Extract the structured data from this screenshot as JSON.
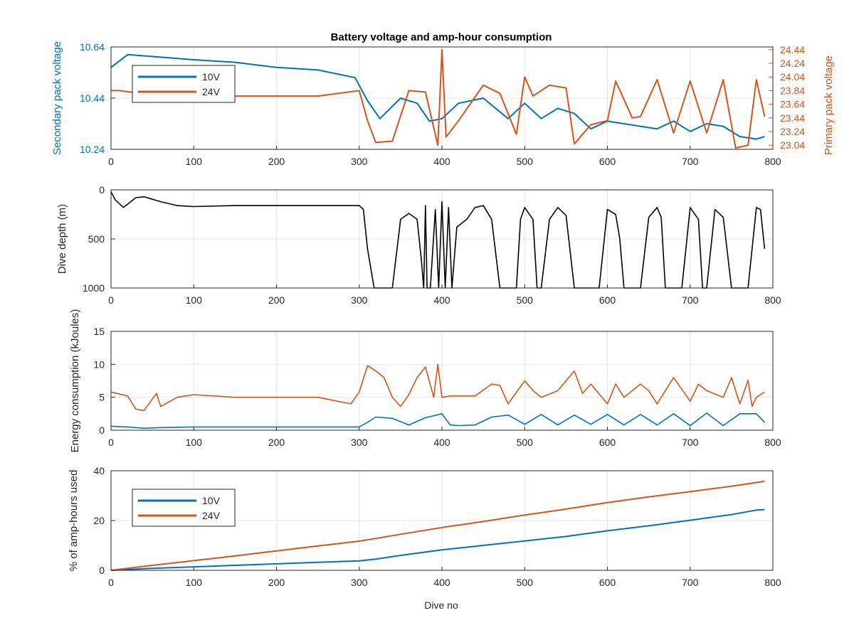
{
  "figure": {
    "title": "Battery voltage and amp-hour consumption",
    "xlabel": "Dive no"
  },
  "colors": {
    "series_10v": "#0072BD",
    "series_24v": "#D95319",
    "depth": "#000000",
    "axis": "#262626",
    "grid": "#e6e6e6",
    "background": "#ffffff"
  },
  "chart_data": [
    {
      "type": "line",
      "title": "Battery voltage and amp-hour consumption",
      "x_ticks": [
        0,
        100,
        200,
        300,
        400,
        500,
        600,
        700,
        800
      ],
      "xlim": [
        0,
        800
      ],
      "ylabel_left": "Secondary pack voltage",
      "ylabel_right": "Primary pack voltage",
      "ylim_left": [
        10.24,
        10.64
      ],
      "ylim_right": [
        22.98,
        24.48
      ],
      "yticks_left": [
        "10.24",
        "10.44",
        "10.64"
      ],
      "yticks_right": [
        "23.04",
        "23.24",
        "23.44",
        "23.64",
        "23.84",
        "24.04",
        "24.24",
        "24.44"
      ],
      "grid": true,
      "legend": {
        "placement": "top-left",
        "entries": [
          "10V",
          "24V"
        ]
      },
      "series": [
        {
          "name": "10V",
          "axis": "left",
          "x": [
            0,
            20,
            60,
            100,
            150,
            200,
            250,
            295,
            310,
            325,
            350,
            370,
            385,
            400,
            420,
            450,
            480,
            500,
            520,
            540,
            560,
            580,
            600,
            620,
            640,
            660,
            680,
            700,
            720,
            740,
            760,
            780,
            790
          ],
          "y": [
            10.56,
            10.61,
            10.6,
            10.59,
            10.58,
            10.56,
            10.55,
            10.52,
            10.43,
            10.36,
            10.44,
            10.42,
            10.35,
            10.36,
            10.42,
            10.44,
            10.36,
            10.42,
            10.36,
            10.4,
            10.38,
            10.32,
            10.35,
            10.34,
            10.33,
            10.32,
            10.35,
            10.31,
            10.34,
            10.33,
            10.29,
            10.28,
            10.29
          ]
        },
        {
          "name": "24V",
          "axis": "right",
          "x": [
            0,
            10,
            50,
            100,
            150,
            200,
            250,
            300,
            310,
            320,
            340,
            360,
            380,
            395,
            400,
            405,
            420,
            450,
            470,
            490,
            500,
            510,
            530,
            550,
            560,
            580,
            600,
            610,
            630,
            640,
            660,
            680,
            700,
            720,
            740,
            755,
            770,
            780,
            790
          ],
          "y": [
            23.84,
            23.84,
            23.78,
            23.78,
            23.76,
            23.76,
            23.76,
            23.84,
            23.4,
            23.08,
            23.1,
            23.84,
            23.82,
            23.04,
            24.44,
            23.16,
            23.4,
            23.92,
            23.8,
            23.2,
            24.04,
            23.76,
            23.92,
            23.88,
            23.06,
            23.34,
            23.4,
            23.98,
            23.44,
            23.46,
            24.0,
            23.22,
            23.98,
            23.22,
            24.0,
            23.0,
            23.04,
            24.0,
            23.46
          ]
        }
      ]
    },
    {
      "type": "line",
      "ylabel": "Dive depth (m)",
      "xlim": [
        0,
        800
      ],
      "ylim": [
        0,
        1000
      ],
      "y_reversed": true,
      "x_ticks": [
        0,
        100,
        200,
        300,
        400,
        500,
        600,
        700,
        800
      ],
      "y_ticks": [
        "0",
        "500",
        "1000"
      ],
      "grid": true,
      "series": [
        {
          "x": [
            0,
            5,
            15,
            30,
            40,
            60,
            80,
            100,
            150,
            200,
            250,
            300,
            305,
            310,
            318,
            330,
            340,
            350,
            360,
            370,
            375,
            378,
            380,
            382,
            386,
            392,
            396,
            400,
            404,
            408,
            412,
            418,
            430,
            440,
            450,
            460,
            470,
            480,
            490,
            495,
            500,
            510,
            515,
            520,
            530,
            540,
            550,
            560,
            565,
            570,
            580,
            590,
            600,
            610,
            615,
            620,
            630,
            640,
            650,
            660,
            665,
            670,
            680,
            690,
            700,
            710,
            715,
            720,
            730,
            740,
            750,
            760,
            770,
            780,
            785,
            790
          ],
          "y": [
            20,
            100,
            180,
            80,
            70,
            120,
            160,
            170,
            160,
            160,
            160,
            160,
            200,
            600,
            1000,
            1000,
            1000,
            300,
            240,
            300,
            700,
            1000,
            160,
            1000,
            1000,
            200,
            1000,
            120,
            1000,
            180,
            1000,
            380,
            300,
            180,
            160,
            300,
            1000,
            1000,
            1000,
            300,
            180,
            300,
            1000,
            1000,
            300,
            180,
            260,
            1000,
            1000,
            1000,
            1000,
            1000,
            200,
            250,
            500,
            1000,
            1000,
            1000,
            280,
            180,
            280,
            1000,
            1000,
            1000,
            180,
            300,
            1000,
            1000,
            200,
            280,
            1000,
            1000,
            1000,
            180,
            200,
            600
          ]
        }
      ]
    },
    {
      "type": "line",
      "ylabel": "Energy consumption (kJoules)",
      "xlim": [
        0,
        800
      ],
      "ylim": [
        0,
        15
      ],
      "x_ticks": [
        0,
        100,
        200,
        300,
        400,
        500,
        600,
        700,
        800
      ],
      "y_ticks": [
        "0",
        "5",
        "10",
        "15"
      ],
      "grid": true,
      "series": [
        {
          "name": "10V",
          "x": [
            0,
            20,
            40,
            60,
            100,
            150,
            200,
            250,
            300,
            310,
            320,
            340,
            360,
            380,
            400,
            410,
            420,
            440,
            460,
            480,
            500,
            520,
            540,
            560,
            580,
            600,
            620,
            640,
            660,
            680,
            700,
            720,
            740,
            760,
            780,
            790
          ],
          "y": [
            0.6,
            0.5,
            0.3,
            0.4,
            0.5,
            0.5,
            0.5,
            0.5,
            0.5,
            1.2,
            2.0,
            1.8,
            0.8,
            1.9,
            2.5,
            0.8,
            0.7,
            0.8,
            2.0,
            2.3,
            0.9,
            2.4,
            0.8,
            2.3,
            0.9,
            2.4,
            0.8,
            2.4,
            0.8,
            2.5,
            0.7,
            2.6,
            0.7,
            2.5,
            2.5,
            1.2
          ]
        },
        {
          "name": "24V",
          "x": [
            0,
            20,
            30,
            40,
            55,
            60,
            80,
            100,
            150,
            200,
            250,
            290,
            300,
            310,
            320,
            330,
            340,
            350,
            360,
            370,
            380,
            390,
            395,
            400,
            410,
            420,
            440,
            460,
            470,
            480,
            500,
            510,
            520,
            540,
            560,
            570,
            580,
            600,
            610,
            620,
            640,
            650,
            660,
            680,
            700,
            710,
            720,
            740,
            750,
            760,
            770,
            775,
            780,
            790
          ],
          "y": [
            5.8,
            5.2,
            3.2,
            3.0,
            5.6,
            3.6,
            5.0,
            5.4,
            5.0,
            5.0,
            5.0,
            4.0,
            5.8,
            9.8,
            9.0,
            8.0,
            5.0,
            3.6,
            5.4,
            8.0,
            9.6,
            5.0,
            10.0,
            5.0,
            5.2,
            5.2,
            5.2,
            7.0,
            6.8,
            4.0,
            7.5,
            6.0,
            5.0,
            6.0,
            9.0,
            5.6,
            7.0,
            4.0,
            7.0,
            5.0,
            7.0,
            6.0,
            4.0,
            8.0,
            4.4,
            7.0,
            6.0,
            5.0,
            8.0,
            4.0,
            7.6,
            3.6,
            5.0,
            5.8
          ]
        }
      ]
    },
    {
      "type": "line",
      "ylabel": "% of amp-hours used",
      "xlabel": "Dive no",
      "xlim": [
        0,
        800
      ],
      "ylim": [
        0,
        40
      ],
      "x_ticks": [
        0,
        100,
        200,
        300,
        400,
        500,
        600,
        700,
        800
      ],
      "y_ticks": [
        "0",
        "20",
        "40"
      ],
      "grid": true,
      "legend": {
        "placement": "top-left",
        "entries": [
          "10V",
          "24V"
        ]
      },
      "series": [
        {
          "name": "10V",
          "x": [
            0,
            50,
            100,
            150,
            200,
            250,
            300,
            320,
            350,
            400,
            450,
            500,
            550,
            600,
            650,
            700,
            750,
            780,
            790
          ],
          "y": [
            0,
            0.8,
            1.4,
            2.0,
            2.6,
            3.2,
            3.8,
            4.5,
            6.0,
            8.2,
            10.0,
            11.8,
            13.6,
            15.9,
            17.9,
            20.1,
            22.4,
            24.2,
            24.4
          ]
        },
        {
          "name": "24V",
          "x": [
            0,
            50,
            100,
            150,
            200,
            250,
            300,
            320,
            350,
            400,
            450,
            500,
            550,
            600,
            650,
            700,
            750,
            790
          ],
          "y": [
            0,
            2.0,
            3.9,
            5.8,
            7.8,
            9.8,
            11.7,
            12.8,
            14.5,
            17.2,
            19.6,
            22.2,
            24.6,
            27.2,
            29.5,
            31.6,
            33.8,
            35.8
          ]
        }
      ]
    }
  ]
}
